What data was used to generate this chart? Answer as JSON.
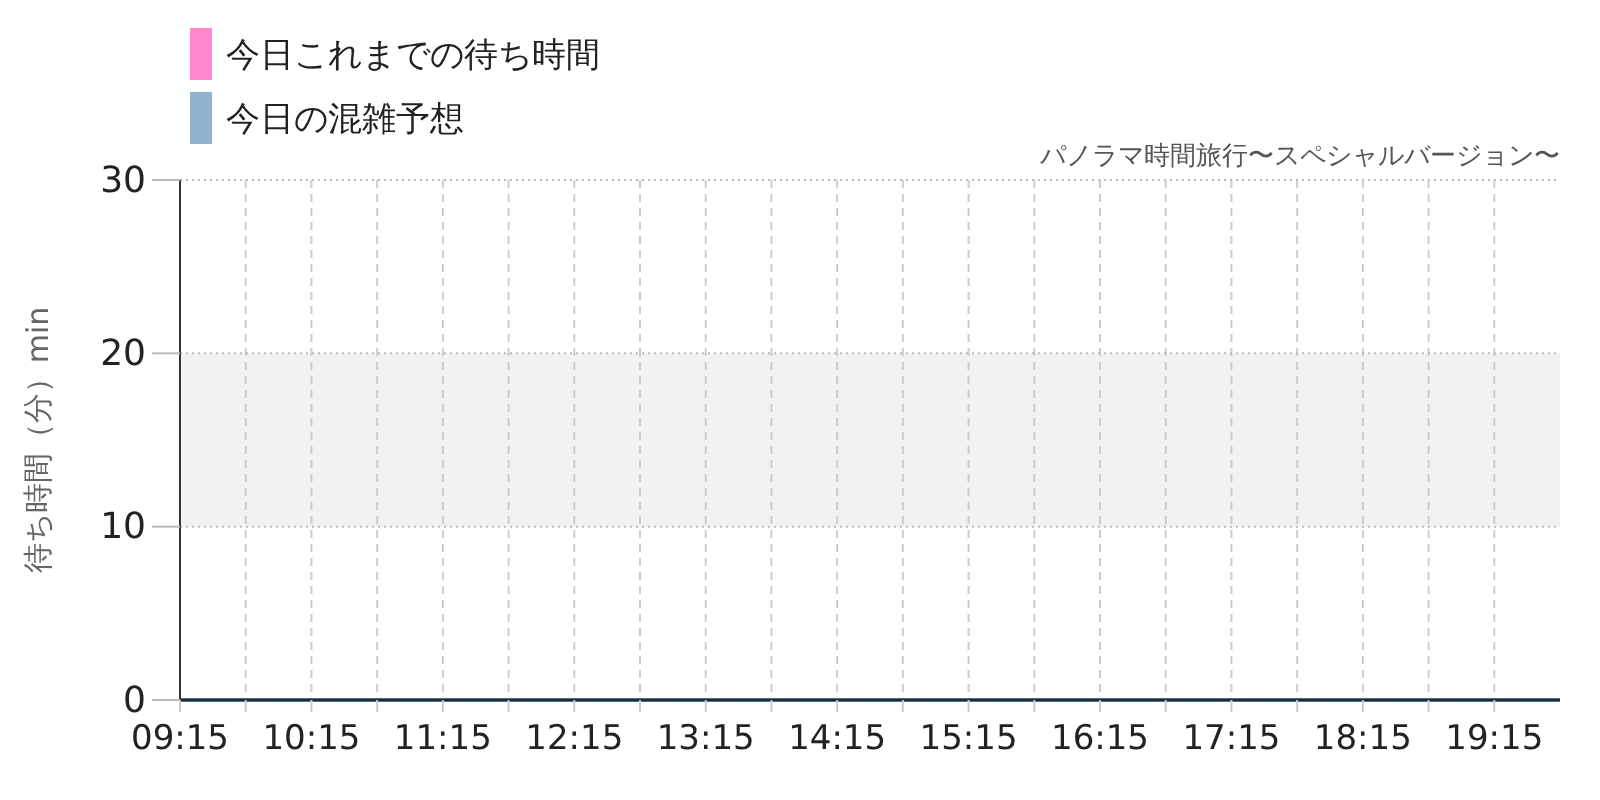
{
  "chart_data": {
    "type": "line",
    "subtitle": "パノラマ時間旅行〜スペシャルバージョン〜",
    "ylabel": "待ち時間（分）min",
    "x": [
      9.25,
      19.75
    ],
    "series": [
      {
        "name": "今日これまでの待ち時間",
        "color": "#ff88cc",
        "values": [
          null,
          null
        ]
      },
      {
        "name": "今日の混雑予想",
        "color": "#8fb2d0",
        "values": [
          0,
          0
        ]
      }
    ],
    "xlim": [
      9.25,
      19.75
    ],
    "xticks": [
      {
        "value": 9.25,
        "label": "09:15"
      },
      {
        "value": 9.75,
        "label": null
      },
      {
        "value": 10.25,
        "label": "10:15"
      },
      {
        "value": 10.75,
        "label": null
      },
      {
        "value": 11.25,
        "label": "11:15"
      },
      {
        "value": 11.75,
        "label": null
      },
      {
        "value": 12.25,
        "label": "12:15"
      },
      {
        "value": 12.75,
        "label": null
      },
      {
        "value": 13.25,
        "label": "13:15"
      },
      {
        "value": 13.75,
        "label": null
      },
      {
        "value": 14.25,
        "label": "14:15"
      },
      {
        "value": 14.75,
        "label": null
      },
      {
        "value": 15.25,
        "label": "15:15"
      },
      {
        "value": 15.75,
        "label": null
      },
      {
        "value": 16.25,
        "label": "16:15"
      },
      {
        "value": 16.75,
        "label": null
      },
      {
        "value": 17.25,
        "label": "17:15"
      },
      {
        "value": 17.75,
        "label": null
      },
      {
        "value": 18.25,
        "label": "18:15"
      },
      {
        "value": 18.75,
        "label": null
      },
      {
        "value": 19.25,
        "label": "19:15"
      }
    ],
    "ylim": [
      0,
      30
    ],
    "yticks": [
      0,
      10,
      20,
      30
    ],
    "bands": [
      {
        "axis": "y",
        "from": 10,
        "to": 20,
        "color": "#f2f2f2"
      }
    ],
    "grid": true,
    "legend": "top left"
  }
}
